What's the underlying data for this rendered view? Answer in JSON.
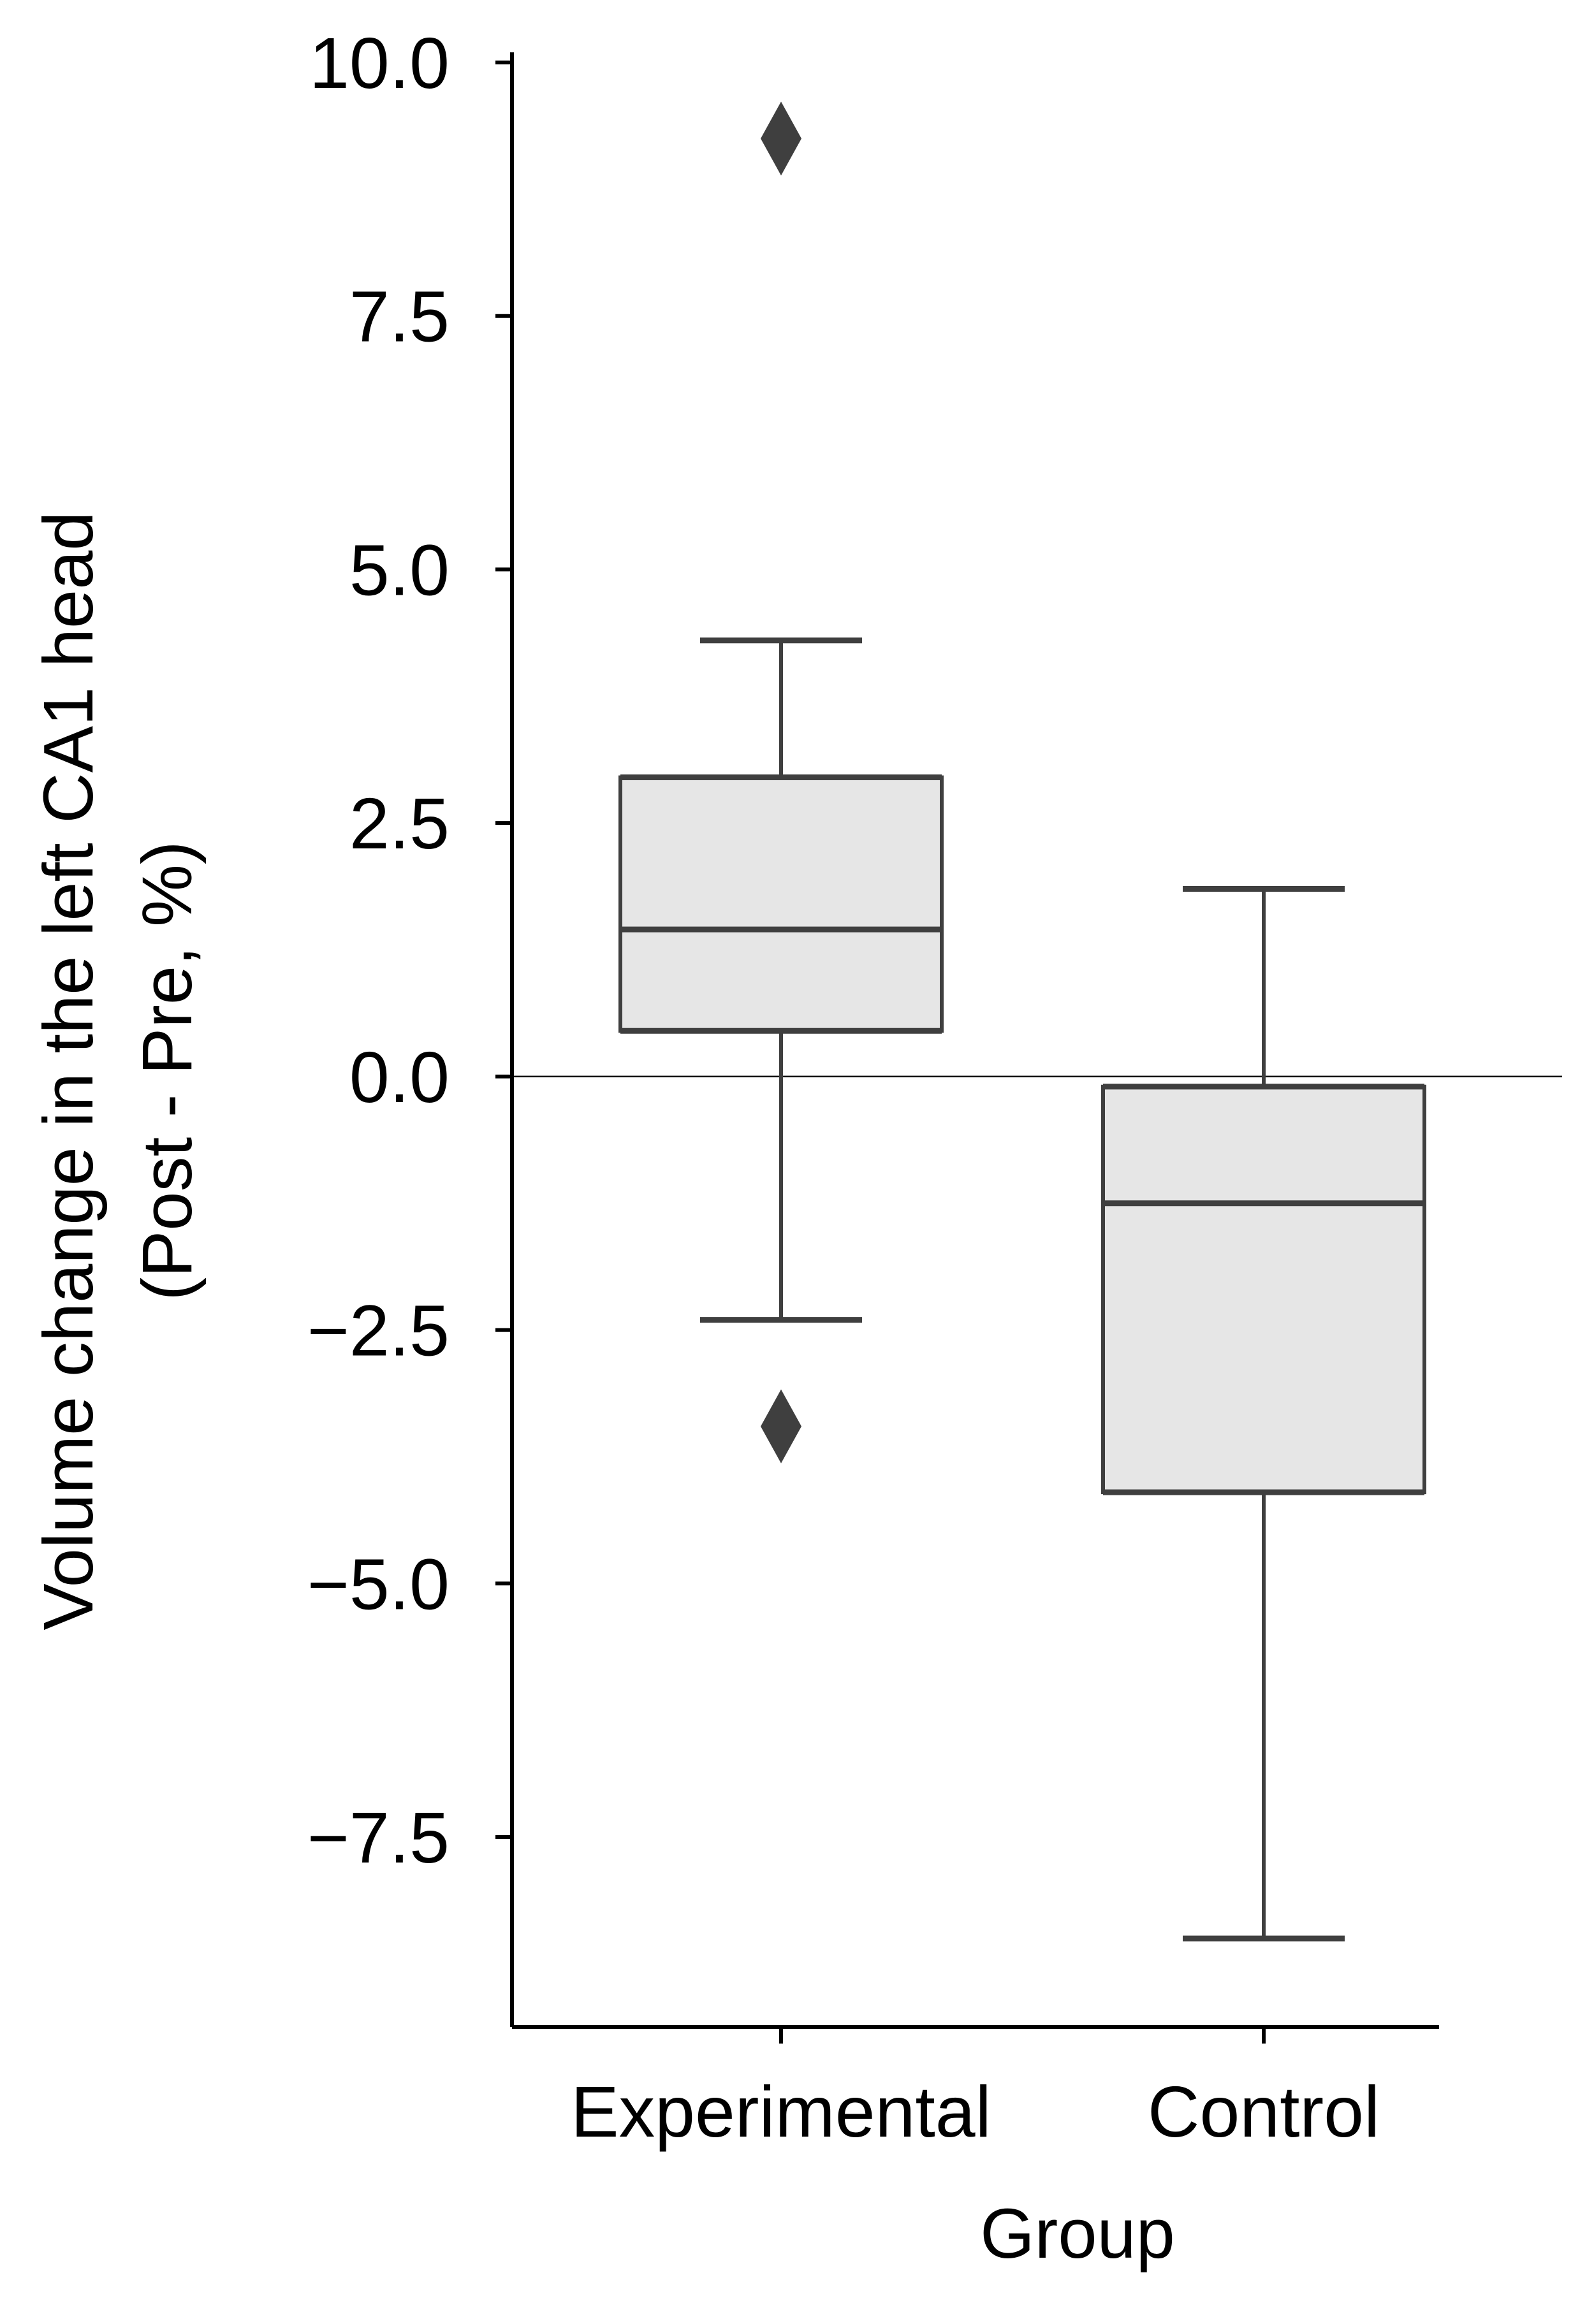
{
  "chart_data": {
    "type": "box",
    "title": "",
    "xlabel": "Group",
    "ylabel_lines": [
      "Volume change in the left CA1 head",
      "(Post - Pre, %)"
    ],
    "ylim": [
      -9.35,
      10.1
    ],
    "y_ticks": [
      10.0,
      7.5,
      5.0,
      2.5,
      0.0,
      -2.5,
      -5.0,
      -7.5
    ],
    "y_tick_labels": [
      "10.0",
      "7.5",
      "5.0",
      "2.5",
      "0.0",
      "−2.5",
      "−5.0",
      "−7.5"
    ],
    "reference_line": 0.0,
    "grid": false,
    "categories": [
      "Experimental",
      "Control"
    ],
    "boxes": [
      {
        "category": "Experimental",
        "whisker_low": -2.4,
        "q1": 0.45,
        "median": 1.45,
        "q3": 2.95,
        "whisker_high": 4.3,
        "outliers": [
          9.25,
          -3.45
        ]
      },
      {
        "category": "Control",
        "whisker_low": -8.5,
        "q1": -4.1,
        "median": -1.25,
        "q3": -0.1,
        "whisker_high": 1.85,
        "outliers": []
      }
    ],
    "colors": {
      "box_fill": "#e6e6e6",
      "box_line": "#3f3f3f",
      "axis": "#000000",
      "reference_line": "#000000"
    }
  }
}
